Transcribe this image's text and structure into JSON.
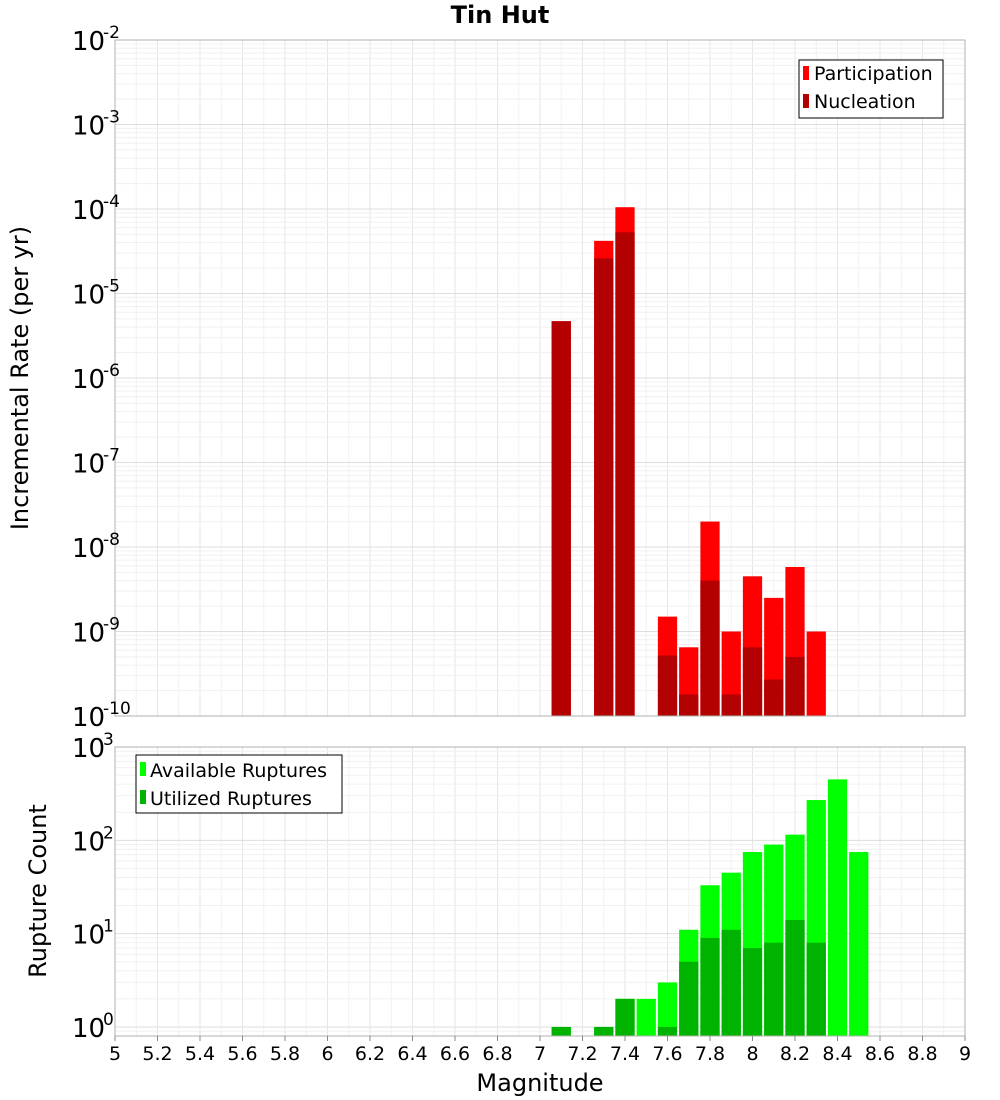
{
  "chart_data": [
    {
      "type": "bar",
      "title": "Tin Hut",
      "ylabel": "Incremental Rate (per yr)",
      "xlabel": "",
      "xlim": [
        5,
        9
      ],
      "ylim": [
        1e-10,
        0.01
      ],
      "yscale": "log",
      "grid": true,
      "legend_position": "top-right",
      "x": [
        7.1,
        7.3,
        7.4,
        7.5,
        7.6,
        7.7,
        7.8,
        7.9,
        8.0,
        8.1,
        8.2,
        8.3
      ],
      "series": [
        {
          "name": "Participation",
          "color": "#ff0000",
          "values": [
            4.7e-06,
            4.2e-05,
            0.000105,
            0,
            1.5e-09,
            6.5e-10,
            2e-08,
            1e-09,
            4.5e-09,
            2.5e-09,
            5.8e-09,
            1e-09
          ]
        },
        {
          "name": "Nucleation",
          "color": "#b30000",
          "values": [
            4.7e-06,
            2.6e-05,
            5.3e-05,
            0,
            5.2e-10,
            1.8e-10,
            4e-09,
            1.8e-10,
            6.5e-10,
            2.7e-10,
            5e-10,
            0
          ]
        }
      ]
    },
    {
      "type": "bar",
      "ylabel": "Rupture Count",
      "xlabel": "Magnitude",
      "xlim": [
        5,
        9
      ],
      "ylim": [
        0.8,
        1000
      ],
      "yscale": "log",
      "grid": true,
      "legend_position": "top-left",
      "x": [
        7.1,
        7.3,
        7.4,
        7.5,
        7.6,
        7.7,
        7.8,
        7.9,
        8.0,
        8.1,
        8.2,
        8.3,
        8.4,
        8.5
      ],
      "series": [
        {
          "name": "Available Ruptures",
          "color": "#00ff00",
          "values": [
            1,
            1,
            2,
            2,
            3,
            11,
            33,
            45,
            75,
            90,
            115,
            270,
            450,
            75
          ]
        },
        {
          "name": "Utilized Ruptures",
          "color": "#00b300",
          "values": [
            1,
            1,
            2,
            0,
            1,
            5,
            9,
            11,
            7,
            8,
            14,
            8,
            0,
            0
          ]
        }
      ]
    }
  ],
  "x_ticks": [
    "5",
    "5.2",
    "5.4",
    "5.6",
    "5.8",
    "6",
    "6.2",
    "6.4",
    "6.6",
    "6.8",
    "7",
    "7.2",
    "7.4",
    "7.6",
    "7.8",
    "8",
    "8.2",
    "8.4",
    "8.6",
    "8.8",
    "9"
  ],
  "top_y_ticks": [
    {
      "base": "10",
      "exp": "-2"
    },
    {
      "base": "10",
      "exp": "-3"
    },
    {
      "base": "10",
      "exp": "-4"
    },
    {
      "base": "10",
      "exp": "-5"
    },
    {
      "base": "10",
      "exp": "-6"
    },
    {
      "base": "10",
      "exp": "-7"
    },
    {
      "base": "10",
      "exp": "-8"
    },
    {
      "base": "10",
      "exp": "-9"
    },
    {
      "base": "10",
      "exp": "-10"
    }
  ],
  "bottom_y_ticks": [
    {
      "base": "10",
      "exp": "3"
    },
    {
      "base": "10",
      "exp": "2"
    },
    {
      "base": "10",
      "exp": "1"
    },
    {
      "base": "10",
      "exp": "0"
    }
  ]
}
